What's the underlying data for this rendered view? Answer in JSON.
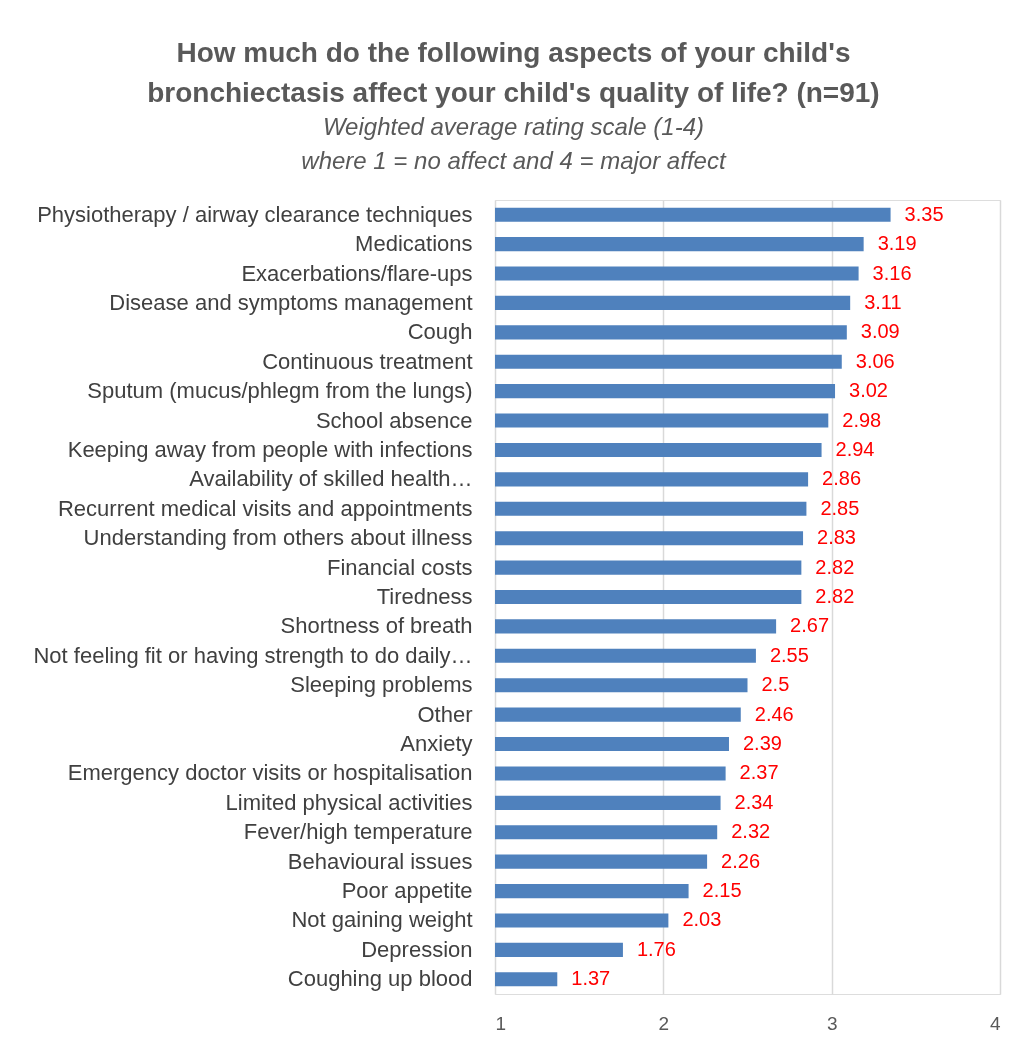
{
  "chart_data": {
    "type": "bar",
    "orientation": "horizontal",
    "title": "How much do the following aspects of your child's bronchiectasis affect your child's quality of life? (n=91)",
    "subtitle": "Weighted average rating scale (1-4) where 1 = no affect and 4 = major affect",
    "categories": [
      "Physiotherapy / airway clearance techniques",
      "Medications",
      "Exacerbations/flare-ups",
      "Disease and symptoms management",
      "Cough",
      "Continuous treatment",
      "Sputum (mucus/phlegm from the lungs)",
      "School absence",
      "Keeping away from people with infections",
      "Availability of skilled health…",
      "Recurrent medical visits and appointments",
      "Understanding from others about illness",
      "Financial costs",
      "Tiredness",
      "Shortness of breath",
      "Not feeling fit or having  strength to do daily…",
      "Sleeping problems",
      "Other",
      "Anxiety",
      "Emergency doctor visits or hospitalisation",
      "Limited physical activities",
      "Fever/high temperature",
      "Behavioural issues",
      "Poor appetite",
      "Not gaining weight",
      "Depression",
      "Coughing up blood"
    ],
    "values": [
      3.35,
      3.19,
      3.16,
      3.11,
      3.09,
      3.06,
      3.02,
      2.98,
      2.94,
      2.86,
      2.85,
      2.83,
      2.82,
      2.82,
      2.67,
      2.55,
      2.5,
      2.46,
      2.39,
      2.37,
      2.34,
      2.32,
      2.26,
      2.15,
      2.03,
      1.76,
      1.37
    ],
    "color": "#4f81bd",
    "data_labels": true,
    "xlim": [
      1,
      4
    ],
    "xticks": [
      1,
      2,
      3,
      4
    ],
    "grid": "x",
    "legend": false
  }
}
